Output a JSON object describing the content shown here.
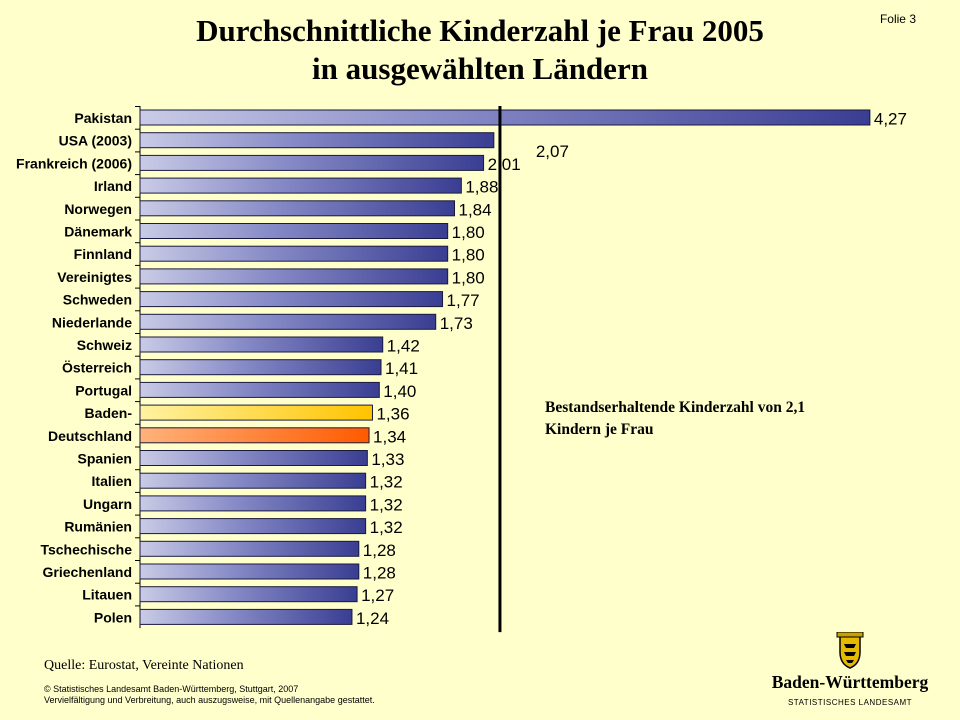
{
  "page": {
    "title_line1": "Durchschnittliche Kinderzahl je Frau 2005",
    "title_line2": "in ausgewählten Ländern",
    "slide_number": "Folie 3",
    "annotation_line1": "Bestandserhaltende Kinderzahl von 2,1",
    "annotation_line2": "Kindern je Frau",
    "source": "Quelle: Eurostat, Vereinte Nationen",
    "copyright_line1": "© Statistisches Landesamt Baden-Württemberg, Stuttgart, 2007",
    "copyright_line2": "Vervielfältigung und Verbreitung, auch auszugsweise, mit Quellenangabe gestattet.",
    "logo_name": "Baden-Württemberg",
    "logo_sub": "STATISTISCHES LANDESAMT",
    "logo_icon": "coat-of-arms-icon"
  },
  "chart_data": {
    "type": "bar",
    "orientation": "horizontal",
    "categories": [
      "Pakistan",
      "USA (2003)",
      "Frankreich (2006)",
      "Irland",
      "Norwegen",
      "Dänemark",
      "Finnland",
      "Vereinigtes",
      "Schweden",
      "Niederlande",
      "Schweiz",
      "Österreich",
      "Portugal",
      "Baden-",
      "Deutschland",
      "Spanien",
      "Italien",
      "Ungarn",
      "Rumänien",
      "Tschechische",
      "Griechenland",
      "Litauen",
      "Polen"
    ],
    "values": [
      4.27,
      2.07,
      2.01,
      1.88,
      1.84,
      1.8,
      1.8,
      1.8,
      1.77,
      1.73,
      1.42,
      1.41,
      1.4,
      1.36,
      1.34,
      1.33,
      1.32,
      1.32,
      1.32,
      1.28,
      1.28,
      1.27,
      1.24
    ],
    "value_labels": [
      "4,27",
      "2,07",
      "2,01",
      "1,88",
      "1,84",
      "1,80",
      "1,80",
      "1,80",
      "1,77",
      "1,73",
      "1,42",
      "1,41",
      "1,40",
      "1,36",
      "1,34",
      "1,33",
      "1,32",
      "1,32",
      "1,32",
      "1,28",
      "1,28",
      "1,27",
      "1,24"
    ],
    "highlight": {
      "Baden-": "#ffcc00",
      "Deutschland": "#ff6600"
    },
    "bar_color": "#5a5ea8",
    "reference_line": {
      "value": 2.1
    },
    "xlim": [
      0,
      4.3
    ],
    "grid": false
  }
}
